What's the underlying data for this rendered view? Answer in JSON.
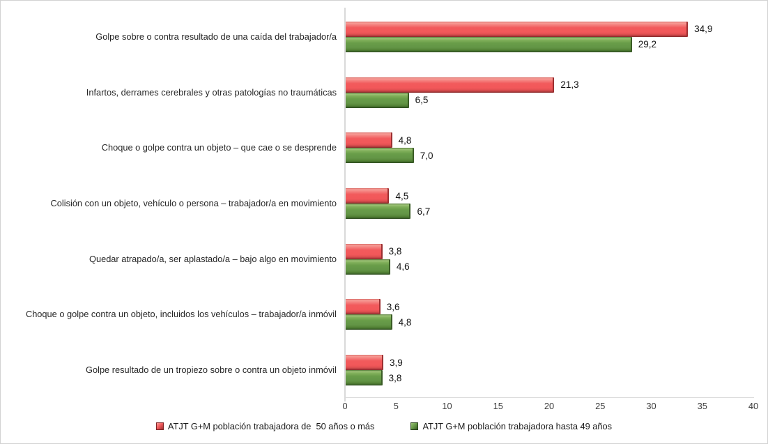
{
  "chart_data": {
    "type": "bar",
    "orientation": "horizontal",
    "title": "",
    "xlabel": "",
    "ylabel": "",
    "grid": false,
    "legend_position": "bottom",
    "categories": [
      "Golpe sobre o contra resultado de una caída del trabajador/a",
      "Infartos, derrames cerebrales y otras patologías no traumáticas",
      "Choque o golpe contra un objeto – que cae o se desprende",
      "Colisión con un objeto, vehículo o persona – trabajador/a en movimiento",
      "Quedar atrapado/a, ser aplastado/a – bajo algo en movimiento",
      "Choque o golpe contra un objeto, incluidos los vehículos – trabajador/a inmóvil",
      "Golpe resultado de un tropiezo sobre o contra un objeto inmóvil"
    ],
    "series": [
      {
        "name": "ATJT G+M población trabajadora de  50 años o más",
        "color": "#F2595B",
        "values": [
          34.9,
          21.3,
          4.8,
          4.5,
          3.8,
          3.6,
          3.9
        ],
        "value_labels": [
          "34,9",
          "21,3",
          "4,8",
          "4,5",
          "3,8",
          "3,6",
          "3,9"
        ]
      },
      {
        "name": "ATJT G+M población trabajadora hasta 49 años",
        "color": "#699D49",
        "values": [
          29.2,
          6.5,
          7.0,
          6.7,
          4.6,
          4.8,
          3.8
        ],
        "value_labels": [
          "29,2",
          "6,5",
          "7,0",
          "6,7",
          "4,6",
          "4,8",
          "3,8"
        ]
      }
    ],
    "x_axis": {
      "min": 0,
      "max": 40,
      "tick_step": 5,
      "tick_labels": [
        "0",
        "5",
        "10",
        "15",
        "20",
        "25",
        "30",
        "35",
        "40"
      ]
    }
  }
}
